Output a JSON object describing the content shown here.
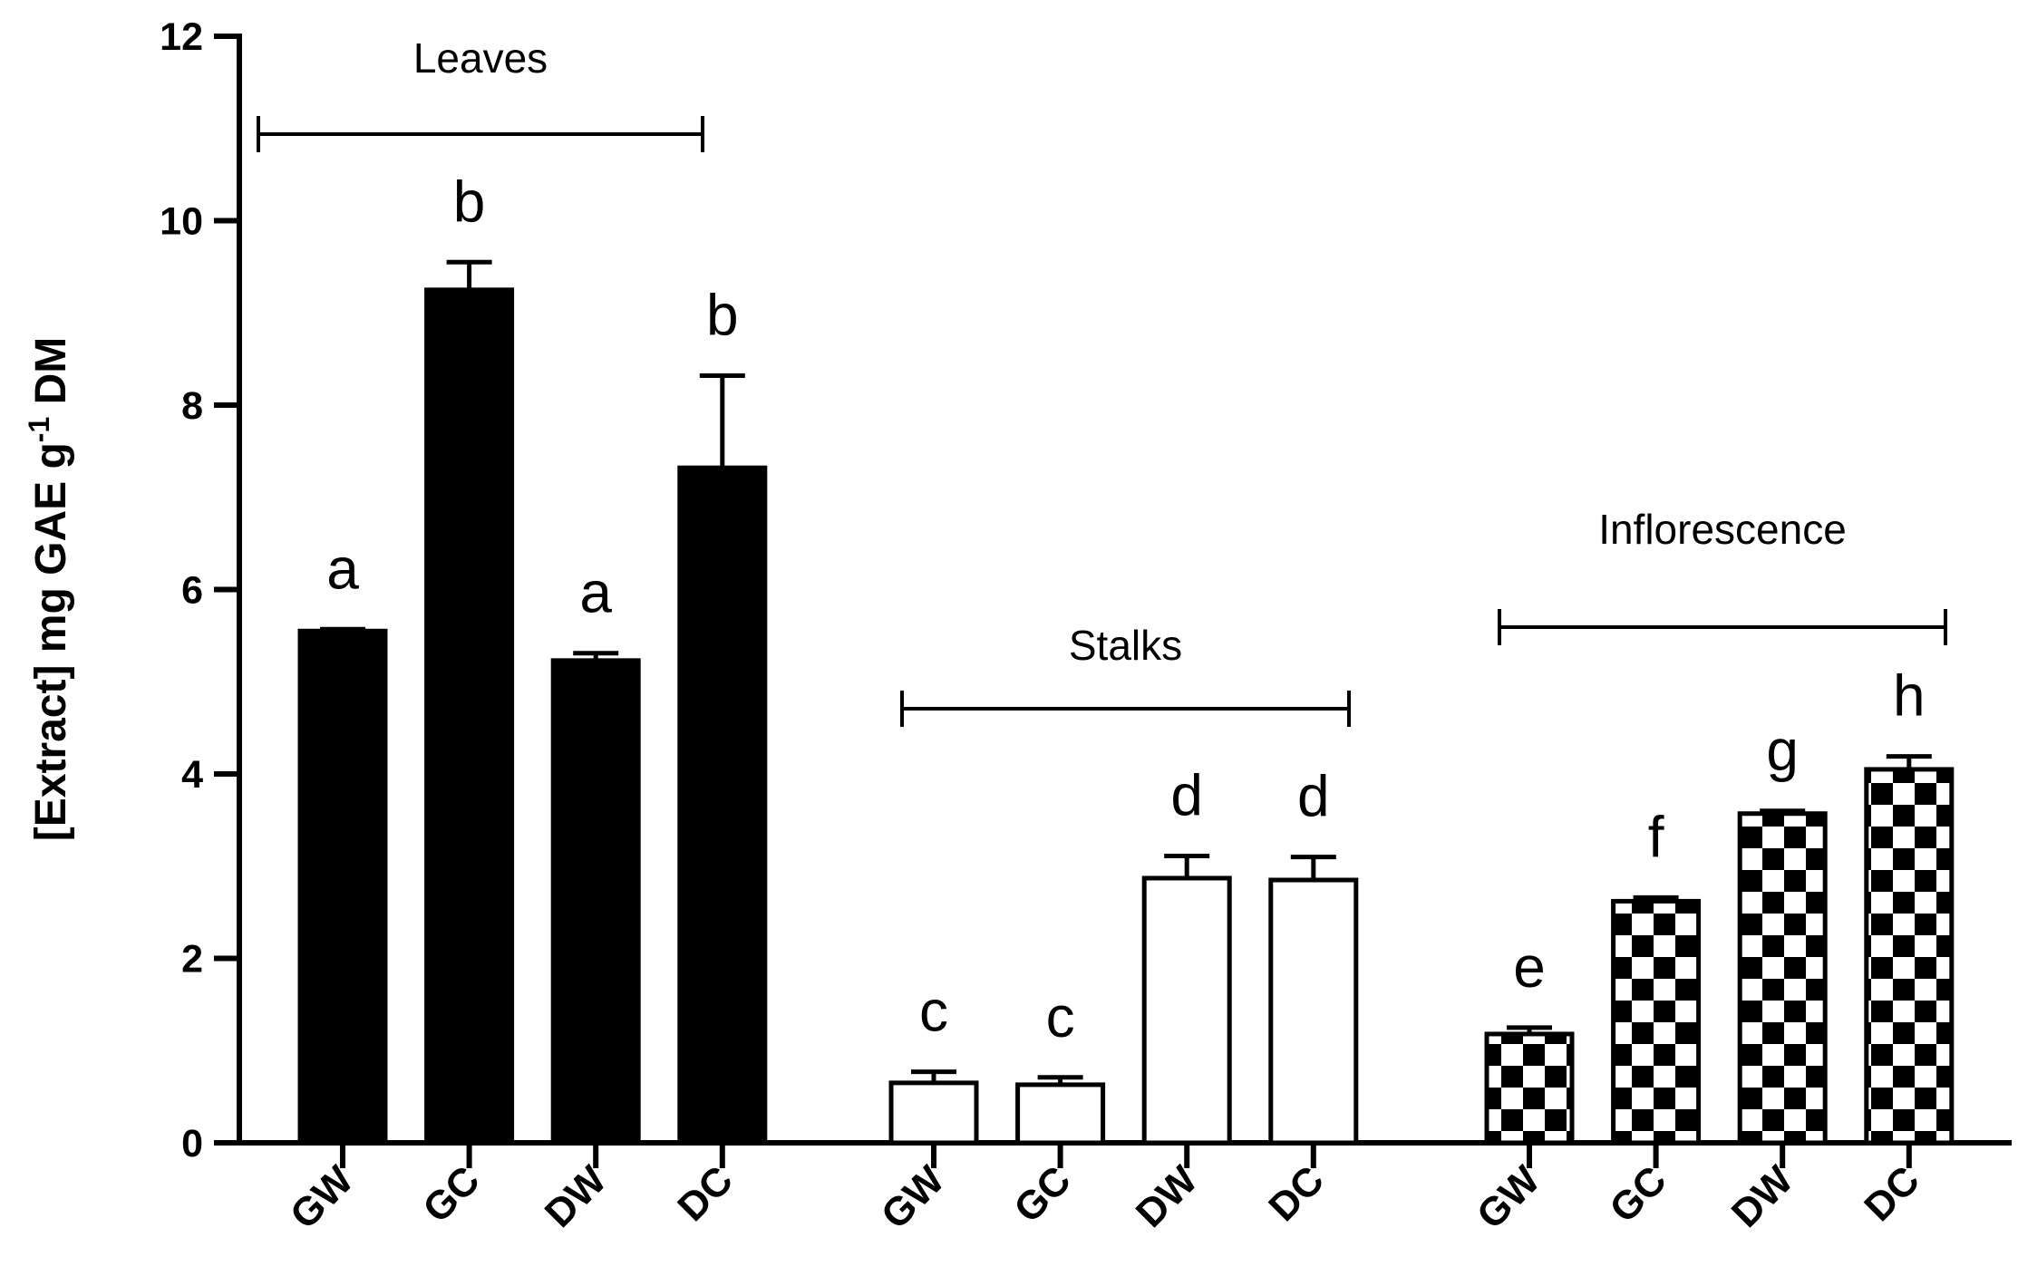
{
  "chart_data": {
    "type": "bar",
    "ylabel": [
      "[Extract] mg GAE g",
      "-1",
      " DM"
    ],
    "ylim": [
      0,
      12
    ],
    "yticks": [
      0,
      2,
      4,
      6,
      8,
      10,
      12
    ],
    "categories": [
      "GW",
      "GC",
      "DW",
      "DC"
    ],
    "series": [
      {
        "name": "Leaves",
        "color": "#000000",
        "pattern": "solid",
        "values": [
          5.55,
          9.25,
          5.23,
          7.32
        ],
        "errors": [
          0.02,
          0.3,
          0.08,
          1.0
        ],
        "letters": [
          "a",
          "b",
          "a",
          "b"
        ]
      },
      {
        "name": "Stalks",
        "color": "#ffffff",
        "pattern": "solid",
        "values": [
          0.65,
          0.63,
          2.87,
          2.85
        ],
        "errors": [
          0.12,
          0.08,
          0.24,
          0.25
        ],
        "letters": [
          "c",
          "c",
          "d",
          "d"
        ]
      },
      {
        "name": "Inflorescence",
        "color": "#000000",
        "pattern": "checker",
        "values": [
          1.18,
          2.62,
          3.57,
          4.05
        ],
        "errors": [
          0.07,
          0.04,
          0.03,
          0.14
        ],
        "letters": [
          "e",
          "f",
          "g",
          "h"
        ]
      }
    ]
  }
}
